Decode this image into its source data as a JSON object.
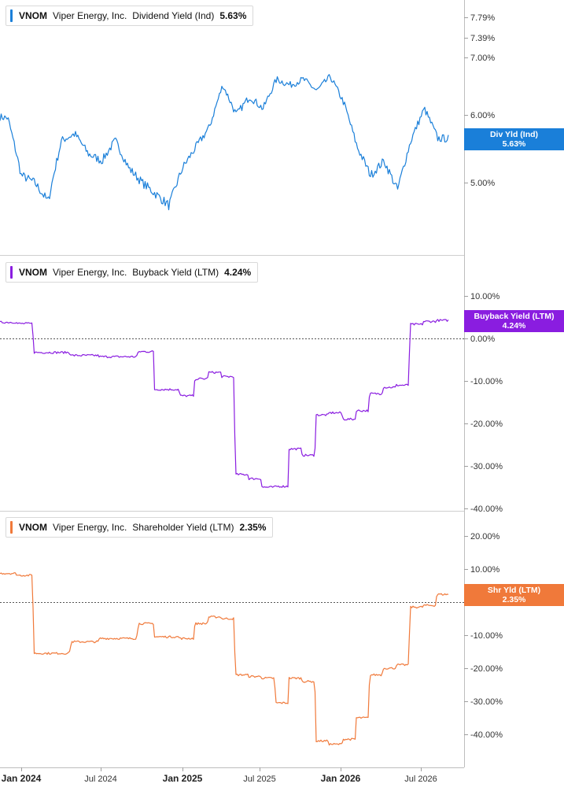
{
  "colors": {
    "div": "#1a7fd9",
    "buyback": "#8a1de0",
    "shr": "#f0793a"
  },
  "legends": [
    {
      "ticker": "VNOM",
      "company": "Viper Energy, Inc.",
      "metric": "Dividend Yield (Ind)",
      "value": "5.63%"
    },
    {
      "ticker": "VNOM",
      "company": "Viper Energy, Inc.",
      "metric": "Buyback Yield (LTM)",
      "value": "4.24%"
    },
    {
      "ticker": "VNOM",
      "company": "Viper Energy, Inc.",
      "metric": "Shareholder Yield (LTM)",
      "value": "2.35%"
    }
  ],
  "badges": [
    {
      "label": "Div Yld (Ind)",
      "value": "5.63%"
    },
    {
      "label": "Buyback Yield (LTM)",
      "value": "4.24%"
    },
    {
      "label": "Shr Yld (LTM)",
      "value": "2.35%"
    }
  ],
  "x_axis": {
    "labels": [
      "Jan 2024",
      "Jul 2024",
      "Jan 2025",
      "Jul 2025",
      "Jan 2026",
      "Jul 2026"
    ],
    "bold": [
      true,
      false,
      true,
      false,
      true,
      false
    ]
  },
  "chart_data": [
    {
      "type": "line",
      "series": [
        {
          "name": "Dividend Yield (Ind)",
          "color": "#1a7fd9",
          "x": [
            "2023-10",
            "2023-12",
            "2024-01",
            "2024-02",
            "2024-03",
            "2024-04",
            "2024-05",
            "2024-06",
            "2024-07",
            "2024-08",
            "2024-09",
            "2024-10",
            "2024-11",
            "2024-12",
            "2025-01",
            "2025-02",
            "2025-03",
            "2025-04",
            "2025-05",
            "2025-06",
            "2025-07",
            "2025-08",
            "2025-09",
            "2025-10",
            "2025-11",
            "2025-12",
            "2026-01",
            "2026-02",
            "2026-03",
            "2026-04",
            "2026-05",
            "2026-06",
            "2026-07",
            "2026-08"
          ],
          "values": [
            6.0,
            5.95,
            5.1,
            5.0,
            4.75,
            5.6,
            5.7,
            5.4,
            5.3,
            5.6,
            5.2,
            5.0,
            4.85,
            4.7,
            5.2,
            5.5,
            5.8,
            6.5,
            6.0,
            6.3,
            6.1,
            6.6,
            6.5,
            6.6,
            6.4,
            6.65,
            6.2,
            5.5,
            5.1,
            5.3,
            4.9,
            5.6,
            6.1,
            5.63
          ]
        }
      ],
      "y_ticks": [
        "7.79%",
        "7.39%",
        "7.00%",
        "6.00%",
        "5.00%"
      ],
      "ylim": [
        4.3,
        7.9
      ],
      "scale": "log"
    },
    {
      "type": "line",
      "series": [
        {
          "name": "Buyback Yield (LTM)",
          "color": "#8a1de0",
          "x": [
            "2023-10",
            "2024-01",
            "2024-02",
            "2024-05",
            "2024-07",
            "2024-10",
            "2024-11",
            "2025-01",
            "2025-02",
            "2025-03",
            "2025-04",
            "2025-05",
            "2025-06",
            "2025-07",
            "2025-08",
            "2025-09",
            "2025-10",
            "2025-11",
            "2025-12",
            "2026-01",
            "2026-02",
            "2026-03",
            "2026-04",
            "2026-05",
            "2026-06",
            "2026-07",
            "2026-08"
          ],
          "values": [
            3.8,
            3.5,
            -3.3,
            -4.0,
            -4.3,
            -3.1,
            -12.0,
            -13.5,
            -9.5,
            -8.0,
            -9.0,
            -32.0,
            -33.0,
            -35.0,
            -34.8,
            -26.0,
            -27.5,
            -18.0,
            -17.5,
            -19.0,
            -17.0,
            -13.0,
            -11.5,
            -11.0,
            3.3,
            4.0,
            4.24
          ]
        }
      ],
      "y_ticks": [
        "10.00%",
        "0.00%",
        "-10.00%",
        "-20.00%",
        "-30.00%",
        "-40.00%"
      ],
      "ylim": [
        -40,
        10
      ]
    },
    {
      "type": "line",
      "series": [
        {
          "name": "Shareholder Yield (LTM)",
          "color": "#f0793a",
          "x": [
            "2023-10",
            "2024-01",
            "2024-02",
            "2024-05",
            "2024-07",
            "2024-10",
            "2024-11",
            "2025-01",
            "2025-02",
            "2025-03",
            "2025-04",
            "2025-05",
            "2025-06",
            "2025-07",
            "2025-08",
            "2025-09",
            "2025-10",
            "2025-11",
            "2025-12",
            "2026-01",
            "2026-02",
            "2026-03",
            "2026-04",
            "2026-05",
            "2026-06",
            "2026-07",
            "2026-08"
          ],
          "values": [
            8.7,
            8.1,
            -15.5,
            -12.0,
            -11.0,
            -6.5,
            -10.5,
            -11.0,
            -6.5,
            -4.5,
            -5.0,
            -22.0,
            -22.5,
            -23.0,
            -30.5,
            -23.0,
            -24.0,
            -42.0,
            -43.0,
            -41.5,
            -35.0,
            -22.0,
            -20.0,
            -19.0,
            -1.5,
            -1.0,
            2.35
          ]
        }
      ],
      "y_ticks": [
        "20.00%",
        "10.00%",
        "0.00%",
        "-10.00%",
        "-20.00%",
        "-30.00%",
        "-40.00%"
      ],
      "ylim": [
        -45,
        22
      ]
    }
  ]
}
